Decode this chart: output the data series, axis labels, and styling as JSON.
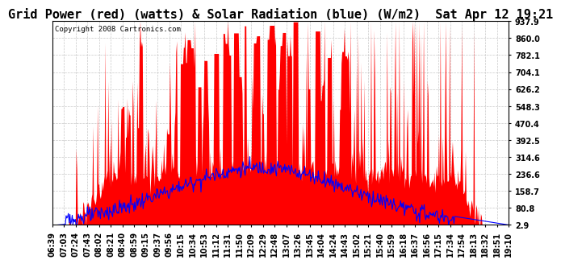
{
  "title": "Grid Power (red) (watts) & Solar Radiation (blue) (W/m2)  Sat Apr 12 19:21",
  "copyright": "Copyright 2008 Cartronics.com",
  "yticks": [
    2.9,
    80.8,
    158.7,
    236.6,
    314.6,
    392.5,
    470.4,
    548.3,
    626.2,
    704.1,
    782.1,
    860.0,
    937.9
  ],
  "ymin": 2.9,
  "ymax": 937.9,
  "background_color": "#ffffff",
  "plot_bg_color": "#ffffff",
  "grid_color": "#c8c8c8",
  "red_color": "#ff0000",
  "blue_color": "#0000ff",
  "title_fontsize": 11,
  "tick_label_fontsize": 7,
  "copyright_fontsize": 6.5,
  "x_labels": [
    "06:39",
    "07:03",
    "07:24",
    "07:43",
    "08:02",
    "08:21",
    "08:40",
    "08:59",
    "09:15",
    "09:37",
    "09:56",
    "10:15",
    "10:34",
    "10:53",
    "11:12",
    "11:31",
    "11:50",
    "12:09",
    "12:29",
    "12:48",
    "13:07",
    "13:26",
    "13:45",
    "14:04",
    "14:24",
    "14:43",
    "15:02",
    "15:21",
    "15:40",
    "15:59",
    "16:18",
    "16:37",
    "16:56",
    "17:15",
    "17:34",
    "17:54",
    "18:13",
    "18:32",
    "18:51",
    "19:10"
  ]
}
